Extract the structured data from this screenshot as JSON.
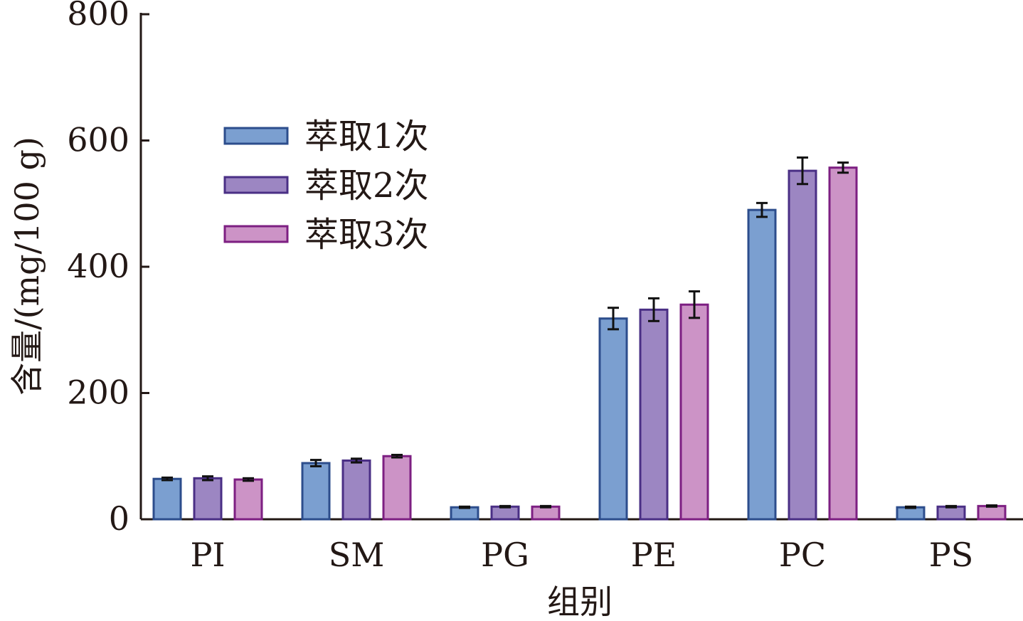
{
  "chart_data": {
    "type": "bar",
    "title": "",
    "xlabel": "组别",
    "ylabel": "含量/(mg/100 g)",
    "ylim": [
      0,
      800
    ],
    "yticks": [
      0,
      200,
      400,
      600,
      800
    ],
    "categories": [
      "PI",
      "SM",
      "PG",
      "PE",
      "PC",
      "PS"
    ],
    "series": [
      {
        "name": "萃取1次",
        "fill": "#7b9fd0",
        "stroke": "#2c4d8c",
        "values": [
          64,
          89,
          19,
          318,
          490,
          19
        ],
        "errors": [
          2,
          5,
          1,
          17,
          11,
          1
        ]
      },
      {
        "name": "萃取2次",
        "fill": "#9c86c2",
        "stroke": "#4a2f85",
        "values": [
          65,
          93,
          20,
          332,
          552,
          20
        ],
        "errors": [
          3,
          3,
          1,
          18,
          21,
          1
        ]
      },
      {
        "name": "萃取3次",
        "fill": "#cc93c6",
        "stroke": "#7d1f82",
        "values": [
          63,
          100,
          20,
          340,
          557,
          21
        ],
        "errors": [
          2,
          2,
          1,
          21,
          8,
          1
        ]
      }
    ],
    "legend_position": "upper-left",
    "grid": false
  }
}
